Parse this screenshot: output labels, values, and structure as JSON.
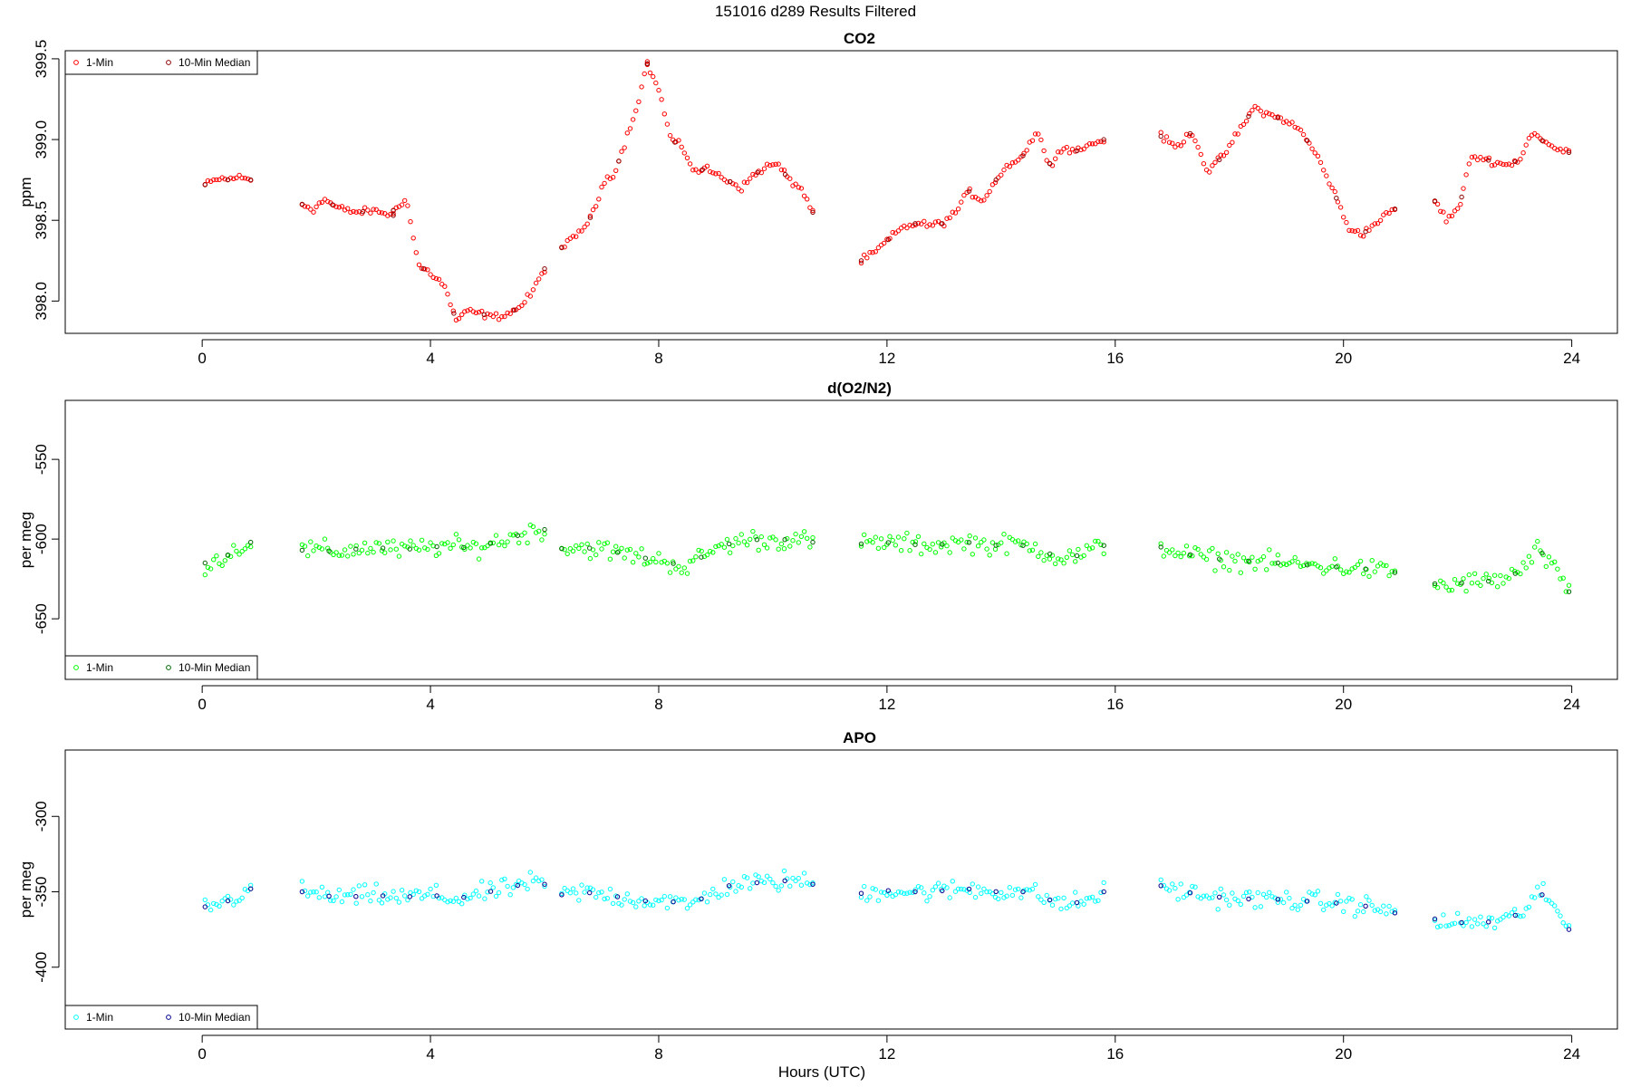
{
  "figure": {
    "title": "151016   d289   Results Filtered",
    "xlabel": "Hours (UTC)"
  },
  "chart_data": [
    {
      "type": "scatter",
      "title": "CO2",
      "ylabel": "ppm",
      "xlim": [
        -2.4,
        24.8
      ],
      "ylim": [
        397.8,
        399.55
      ],
      "xticks": [
        0,
        4,
        8,
        12,
        16,
        20,
        24
      ],
      "yticks": [
        398.0,
        398.5,
        399.0,
        399.5
      ],
      "ytick_labels": [
        "398.0",
        "398.5",
        "399.0",
        "399.5"
      ],
      "legend": {
        "position": "top-left",
        "entries": [
          "1-Min",
          "10-Min Median"
        ]
      },
      "colors": {
        "one_min": "#ff0000",
        "median": "#8b0000"
      },
      "segments": [
        {
          "x_start": 0.05,
          "x_end": 0.85,
          "y": [
            398.72,
            398.74,
            398.76,
            398.75,
            398.77,
            398.76,
            398.75
          ]
        },
        {
          "x_start": 1.75,
          "x_end": 3.35,
          "y": [
            398.6,
            398.57,
            398.63,
            398.58,
            398.56,
            398.55,
            398.56,
            398.55,
            398.53
          ]
        },
        {
          "x_start": 3.35,
          "x_end": 6.0,
          "y": [
            398.56,
            398.64,
            398.22,
            398.17,
            398.1,
            397.88,
            397.94,
            397.92,
            397.9,
            397.92,
            397.96,
            398.05,
            398.2
          ]
        },
        {
          "x_start": 6.3,
          "x_end": 7.8,
          "y": [
            398.33,
            398.38,
            398.45,
            398.55,
            398.75,
            398.8,
            399.0,
            399.2,
            399.47
          ]
        },
        {
          "x_start": 7.8,
          "x_end": 10.7,
          "y": [
            399.47,
            399.3,
            399.0,
            398.95,
            398.8,
            398.82,
            398.78,
            398.74,
            398.7,
            398.78,
            398.83,
            398.85,
            398.75,
            398.7,
            398.55
          ]
        },
        {
          "x_start": 11.55,
          "x_end": 15.8,
          "y": [
            398.25,
            398.3,
            398.38,
            398.45,
            398.48,
            398.47,
            398.48,
            398.55,
            398.68,
            398.62,
            398.75,
            398.85,
            398.9,
            399.05,
            398.85,
            398.95,
            398.93,
            398.97,
            399.0
          ]
        },
        {
          "x_start": 16.8,
          "x_end": 20.9,
          "y": [
            399.02,
            398.95,
            399.05,
            398.8,
            398.9,
            399.05,
            399.2,
            399.15,
            399.12,
            399.05,
            398.9,
            398.7,
            398.45,
            398.42,
            398.5,
            398.57
          ]
        },
        {
          "x_start": 21.6,
          "x_end": 23.95,
          "y": [
            398.62,
            398.5,
            398.58,
            398.9,
            398.88,
            398.86,
            398.84,
            398.88,
            399.05,
            398.98,
            398.94,
            398.92
          ]
        }
      ],
      "series": [
        {
          "name": "1-Min"
        },
        {
          "name": "10-Min Median"
        }
      ]
    },
    {
      "type": "scatter",
      "title": "d(O2/N2)",
      "ylabel": "per meg",
      "xlim": [
        -2.4,
        24.8
      ],
      "ylim": [
        -688,
        -513
      ],
      "xticks": [
        0,
        4,
        8,
        12,
        16,
        20,
        24
      ],
      "yticks": [
        -550,
        -600,
        -650
      ],
      "ytick_labels": [
        "-550",
        "-600",
        "-650"
      ],
      "legend": {
        "position": "bottom-left",
        "entries": [
          "1-Min",
          "10-Min Median"
        ]
      },
      "colors": {
        "one_min": "#00ff00",
        "median": "#006400"
      },
      "segments": [
        {
          "x_start": 0.05,
          "x_end": 0.85,
          "y": [
            -615,
            -613,
            -610,
            -605,
            -602
          ]
        },
        {
          "x_start": 1.75,
          "x_end": 6.0,
          "y": [
            -607,
            -607,
            -608,
            -606,
            -605,
            -607,
            -606,
            -605,
            -604,
            -606,
            -603,
            -600,
            -596,
            -594
          ]
        },
        {
          "x_start": 6.3,
          "x_end": 10.7,
          "y": [
            -606,
            -605,
            -607,
            -609,
            -612,
            -614,
            -618,
            -608,
            -603,
            -600,
            -601,
            -600,
            -602
          ]
        },
        {
          "x_start": 11.55,
          "x_end": 15.8,
          "y": [
            -603,
            -602,
            -603,
            -604,
            -603,
            -602,
            -604,
            -603,
            -606,
            -612,
            -610,
            -604
          ]
        },
        {
          "x_start": 16.8,
          "x_end": 20.9,
          "y": [
            -605,
            -609,
            -612,
            -613,
            -614,
            -615,
            -616,
            -617,
            -618,
            -619,
            -621
          ]
        },
        {
          "x_start": 21.6,
          "x_end": 23.95,
          "y": [
            -628,
            -630,
            -627,
            -627,
            -626,
            -624,
            -618,
            -606,
            -620,
            -633
          ]
        }
      ],
      "series": [
        {
          "name": "1-Min"
        },
        {
          "name": "10-Min Median"
        }
      ]
    },
    {
      "type": "scatter",
      "title": "APO",
      "ylabel": "per meg",
      "xlim": [
        -2.4,
        24.8
      ],
      "ylim": [
        -441,
        -256
      ],
      "xticks": [
        0,
        4,
        8,
        12,
        16,
        20,
        24
      ],
      "yticks": [
        -300,
        -350,
        -400
      ],
      "ytick_labels": [
        "-300",
        "-350",
        "-400"
      ],
      "legend": {
        "position": "bottom-left",
        "entries": [
          "1-Min",
          "10-Min Median"
        ]
      },
      "colors": {
        "one_min": "#00ffff",
        "median": "#00008b"
      },
      "segments": [
        {
          "x_start": 0.05,
          "x_end": 0.85,
          "y": [
            -360,
            -358,
            -356,
            -352,
            -348
          ]
        },
        {
          "x_start": 1.75,
          "x_end": 6.0,
          "y": [
            -350,
            -352,
            -354,
            -353,
            -352,
            -354,
            -353,
            -352,
            -355,
            -353,
            -350,
            -348,
            -344,
            -345
          ]
        },
        {
          "x_start": 6.3,
          "x_end": 10.7,
          "y": [
            -352,
            -350,
            -352,
            -354,
            -356,
            -355,
            -360,
            -352,
            -346,
            -344,
            -344,
            -342,
            -345
          ]
        },
        {
          "x_start": 11.55,
          "x_end": 15.8,
          "y": [
            -351,
            -349,
            -350,
            -350,
            -349,
            -348,
            -350,
            -349,
            -352,
            -358,
            -357,
            -350
          ]
        },
        {
          "x_start": 16.8,
          "x_end": 20.9,
          "y": [
            -346,
            -350,
            -353,
            -354,
            -355,
            -355,
            -356,
            -357,
            -358,
            -360,
            -364
          ]
        },
        {
          "x_start": 21.6,
          "x_end": 23.95,
          "y": [
            -368,
            -372,
            -370,
            -370,
            -370,
            -368,
            -362,
            -350,
            -360,
            -375
          ]
        }
      ],
      "series": [
        {
          "name": "1-Min"
        },
        {
          "name": "10-Min Median"
        }
      ]
    }
  ]
}
